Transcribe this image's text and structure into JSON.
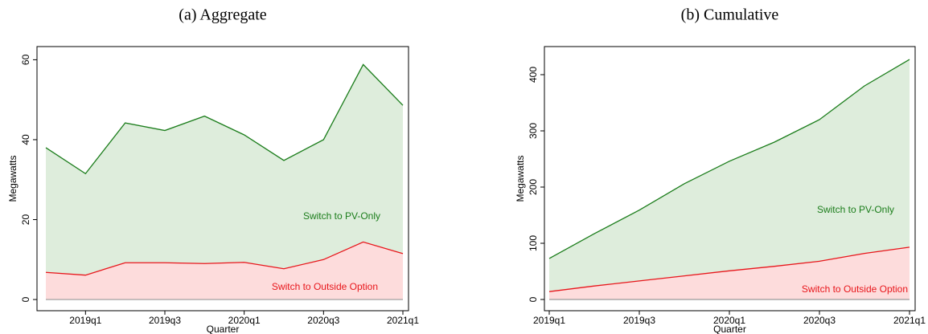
{
  "chart_data": [
    {
      "type": "area",
      "title": "(a) Aggregate",
      "ylabel": "Megawatts",
      "xlabel": "Quarter",
      "categories": [
        null,
        "2019q1",
        null,
        "2019q3",
        null,
        "2020q1",
        null,
        "2020q3",
        null,
        "2021q1"
      ],
      "series": [
        {
          "name": "Switch to PV-Only",
          "color": "#1b7d1b",
          "values": [
            38,
            31.5,
            44.2,
            42.3,
            45.9,
            41.2,
            34.8,
            40,
            58.8,
            48.6
          ]
        },
        {
          "name": "Switch to Outside Option",
          "color": "#e8161b",
          "values": [
            6.8,
            6.1,
            9.2,
            9.2,
            9,
            9.3,
            7.7,
            10,
            14.4,
            11.5
          ]
        }
      ],
      "ylim": [
        -2.8,
        63.3
      ],
      "yticks": [
        0,
        20,
        40,
        60
      ]
    },
    {
      "type": "area",
      "title": "(b) Cumulative",
      "ylabel": "Megawatts",
      "xlabel": "Quarter",
      "categories": [
        "2019q1",
        null,
        "2019q3",
        null,
        "2020q1",
        null,
        "2020q3",
        null,
        "2021q1"
      ],
      "series": [
        {
          "name": "Switch to PV-Only",
          "color": "#1b7d1b",
          "values": [
            73,
            117,
            159,
            206,
            246,
            280,
            320,
            380,
            427
          ]
        },
        {
          "name": "Switch to Outside Option",
          "color": "#e8161b",
          "values": [
            14,
            24,
            33,
            42,
            51,
            59,
            68,
            82,
            93
          ]
        }
      ],
      "ylim": [
        -20,
        450
      ],
      "yticks": [
        0,
        100,
        200,
        300,
        400
      ]
    }
  ]
}
